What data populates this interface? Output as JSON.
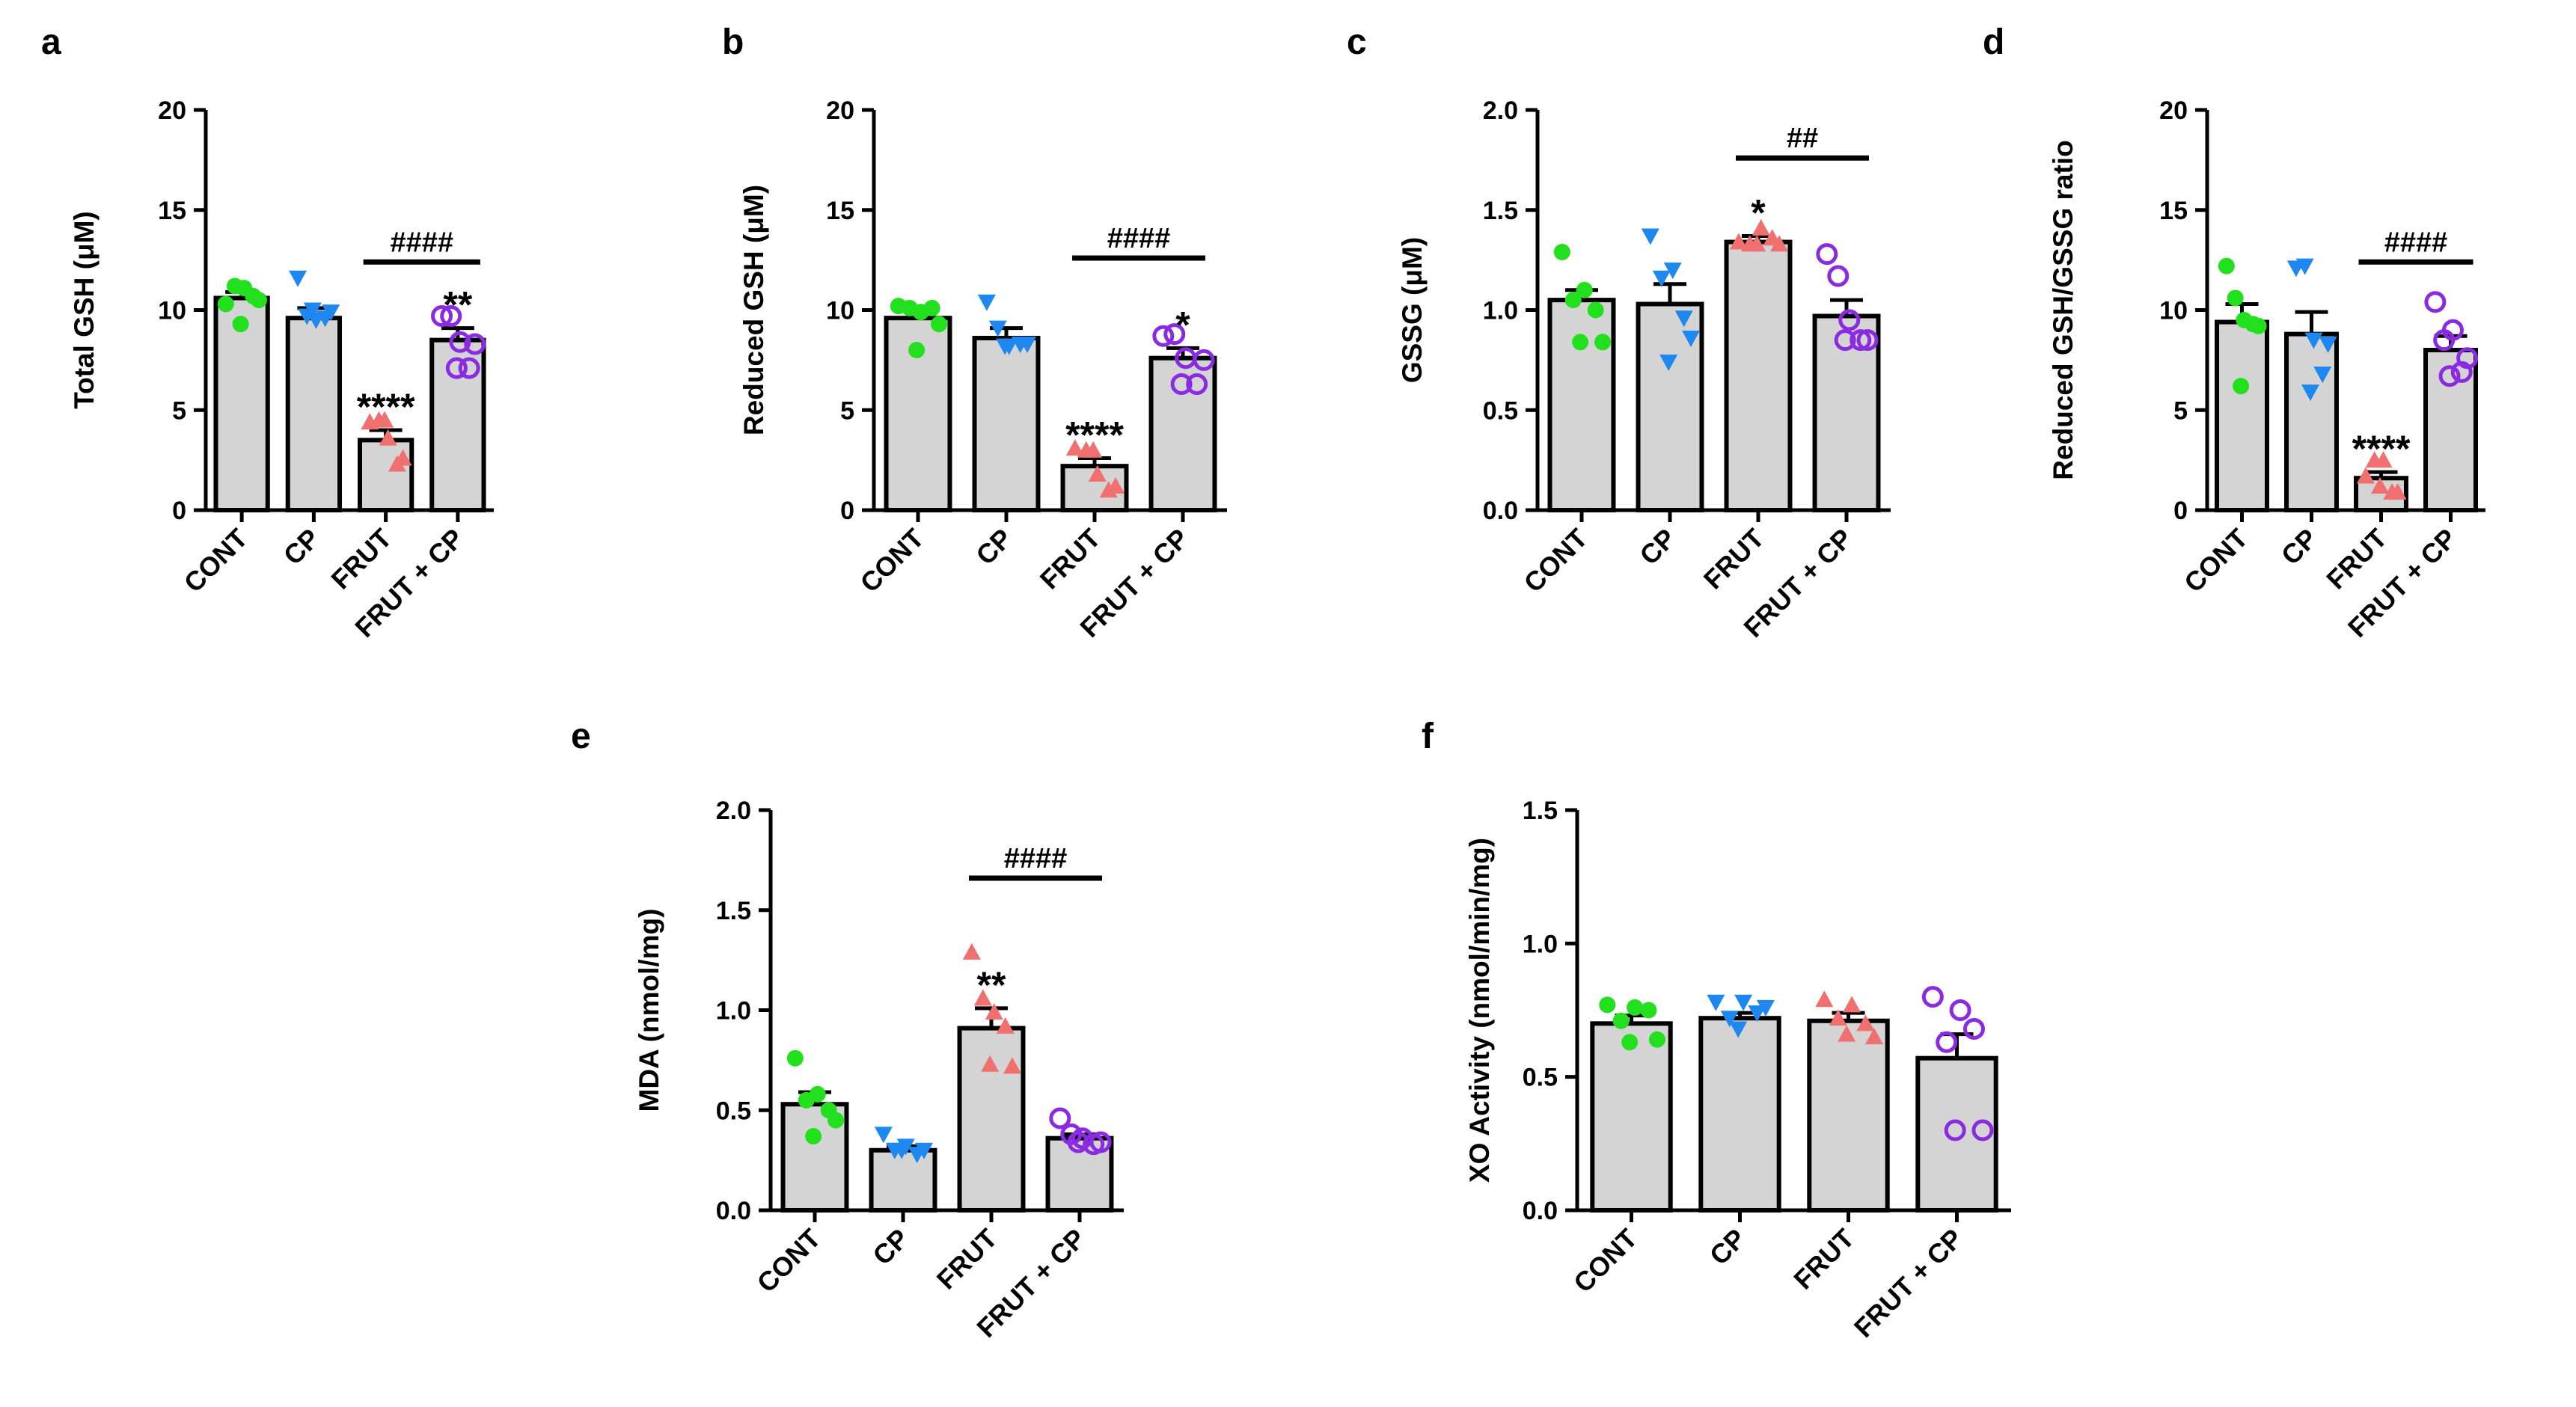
{
  "colors": {
    "bar_fill": "#d4d4d4",
    "ink": "#000000",
    "CONT": "#22e01e",
    "CP": "#1e88f0",
    "FRUT": "#f07070",
    "FRUT + CP": "#8a2be2"
  },
  "chart_data": [
    {
      "type": "bar",
      "panel": "a",
      "ylabel": "Total GSH  (μM)",
      "ylim": [
        0,
        20
      ],
      "yticks": [
        "0",
        "5",
        "10",
        "15",
        "20"
      ],
      "tick_values": [
        0,
        5,
        10,
        15,
        20
      ],
      "categories": [
        "CONT",
        "CP",
        "FRUT",
        "FRUT + CP"
      ],
      "marker": [
        "circle",
        "tri-down",
        "tri-up",
        "open-circle"
      ],
      "values": [
        10.6,
        9.6,
        3.5,
        8.5
      ],
      "sem": [
        0.3,
        0.5,
        0.5,
        0.6
      ],
      "points": [
        [
          10.3,
          11.2,
          11.1,
          10.7,
          10.5,
          9.3
        ],
        [
          11.6,
          9.7,
          9.5,
          9.6,
          9.9,
          10.0
        ],
        [
          4.4,
          4.5,
          3.6,
          2.3,
          2.6,
          4.5
        ],
        [
          9.7,
          9.7,
          8.4,
          7.1,
          8.3,
          7.1
        ]
      ],
      "sig": [
        "",
        "",
        "****",
        "**"
      ],
      "bracket": {
        "from": 2,
        "to": 3,
        "label": "####",
        "y": 12.4
      }
    },
    {
      "type": "bar",
      "panel": "b",
      "ylabel": "Reduced GSH  (μM)",
      "ylim": [
        0,
        20
      ],
      "yticks": [
        "0",
        "5",
        "10",
        "15",
        "20"
      ],
      "tick_values": [
        0,
        5,
        10,
        15,
        20
      ],
      "categories": [
        "CONT",
        "CP",
        "FRUT",
        "FRUT + CP"
      ],
      "marker": [
        "circle",
        "tri-down",
        "tri-up",
        "open-circle"
      ],
      "values": [
        9.6,
        8.6,
        2.2,
        7.6
      ],
      "sem": [
        0.4,
        0.5,
        0.4,
        0.5
      ],
      "points": [
        [
          10.2,
          10.1,
          9.9,
          10.1,
          9.3,
          8.0
        ],
        [
          10.4,
          9.1,
          8.2,
          8.3,
          8.3,
          8.2
        ],
        [
          3.1,
          3.0,
          1.8,
          1.0,
          1.2,
          3.0
        ],
        [
          8.7,
          8.8,
          7.6,
          6.3,
          7.5,
          6.3
        ]
      ],
      "sig": [
        "",
        "",
        "****",
        "*"
      ],
      "bracket": {
        "from": 2,
        "to": 3,
        "label": "####",
        "y": 12.6
      }
    },
    {
      "type": "bar",
      "panel": "c",
      "ylabel": "GSSG  (μM)",
      "ylim": [
        0,
        2
      ],
      "yticks": [
        "0.0",
        "0.5",
        "1.0",
        "1.5",
        "2.0"
      ],
      "tick_values": [
        0,
        0.5,
        1,
        1.5,
        2
      ],
      "categories": [
        "CONT",
        "CP",
        "FRUT",
        "FRUT + CP"
      ],
      "marker": [
        "circle",
        "tri-down",
        "tri-up",
        "open-circle"
      ],
      "values": [
        1.05,
        1.03,
        1.34,
        0.97
      ],
      "sem": [
        0.05,
        0.1,
        0.03,
        0.08
      ],
      "points": [
        [
          1.29,
          1.05,
          1.1,
          1.0,
          0.84,
          0.84
        ],
        [
          1.37,
          1.16,
          1.2,
          0.96,
          0.86,
          0.74
        ],
        [
          1.34,
          1.33,
          1.41,
          1.36,
          1.33,
          1.33
        ],
        [
          1.28,
          1.17,
          0.95,
          0.85,
          0.85,
          0.85
        ]
      ],
      "sig": [
        "",
        "",
        "*",
        ""
      ],
      "bracket": {
        "from": 2,
        "to": 3,
        "label": "##",
        "y": 1.76
      }
    },
    {
      "type": "bar",
      "panel": "d",
      "ylabel": "Reduced GSH/GSSG ratio",
      "ylim": [
        0,
        20
      ],
      "yticks": [
        "0",
        "5",
        "10",
        "15",
        "20"
      ],
      "tick_values": [
        0,
        5,
        10,
        15,
        20
      ],
      "categories": [
        "CONT",
        "CP",
        "FRUT",
        "FRUT + CP"
      ],
      "marker": [
        "circle",
        "tri-down",
        "tri-up",
        "open-circle"
      ],
      "values": [
        9.4,
        8.8,
        1.6,
        8.0
      ],
      "sem": [
        0.9,
        1.1,
        0.3,
        0.7
      ],
      "points": [
        [
          12.2,
          10.6,
          9.5,
          9.3,
          9.2,
          6.2
        ],
        [
          12.1,
          12.2,
          8.5,
          6.8,
          8.3,
          5.9
        ],
        [
          1.7,
          2.5,
          2.5,
          0.9,
          0.9,
          1.2
        ],
        [
          10.4,
          8.5,
          9.0,
          6.9,
          7.6,
          6.7
        ]
      ],
      "sig": [
        "",
        "",
        "****",
        ""
      ],
      "bracket": {
        "from": 2,
        "to": 3,
        "label": "####",
        "y": 12.4
      }
    },
    {
      "type": "bar",
      "panel": "e",
      "ylabel": "MDA (nmol/mg)",
      "ylim": [
        0,
        2
      ],
      "yticks": [
        "0.0",
        "0.5",
        "1.0",
        "1.5",
        "2.0"
      ],
      "tick_values": [
        0,
        0.5,
        1,
        1.5,
        2
      ],
      "categories": [
        "CONT",
        "CP",
        "FRUT",
        "FRUT + CP"
      ],
      "marker": [
        "circle",
        "tri-down",
        "tri-up",
        "open-circle"
      ],
      "values": [
        0.53,
        0.3,
        0.91,
        0.36
      ],
      "sem": [
        0.06,
        0.02,
        0.1,
        0.02
      ],
      "points": [
        [
          0.76,
          0.55,
          0.58,
          0.5,
          0.45,
          0.37
        ],
        [
          0.38,
          0.3,
          0.32,
          0.28,
          0.3,
          0.3
        ],
        [
          1.29,
          1.06,
          0.99,
          0.92,
          0.72,
          0.73
        ],
        [
          0.46,
          0.38,
          0.36,
          0.33,
          0.34,
          0.34
        ]
      ],
      "sig": [
        "",
        "",
        "**",
        ""
      ],
      "bracket": {
        "from": 2,
        "to": 3,
        "label": "####",
        "y": 1.66
      }
    },
    {
      "type": "bar",
      "panel": "f",
      "ylabel": "XO Activity (nmol/min/mg)",
      "ylim": [
        0,
        1.5
      ],
      "yticks": [
        "0.0",
        "0.5",
        "1.0",
        "1.5"
      ],
      "tick_values": [
        0,
        0.5,
        1,
        1.5
      ],
      "categories": [
        "CONT",
        "CP",
        "FRUT",
        "FRUT + CP"
      ],
      "marker": [
        "circle",
        "tri-down",
        "tri-up",
        "open-circle"
      ],
      "values": [
        0.7,
        0.72,
        0.71,
        0.57
      ],
      "sem": [
        0.03,
        0.02,
        0.03,
        0.09
      ],
      "points": [
        [
          0.77,
          0.71,
          0.76,
          0.75,
          0.64,
          0.63
        ],
        [
          0.78,
          0.72,
          0.78,
          0.74,
          0.76,
          0.68
        ],
        [
          0.79,
          0.72,
          0.77,
          0.7,
          0.65,
          0.66
        ],
        [
          0.8,
          0.63,
          0.75,
          0.68,
          0.3,
          0.3
        ]
      ],
      "sig": [
        "",
        "",
        "",
        ""
      ],
      "bracket": null
    }
  ]
}
